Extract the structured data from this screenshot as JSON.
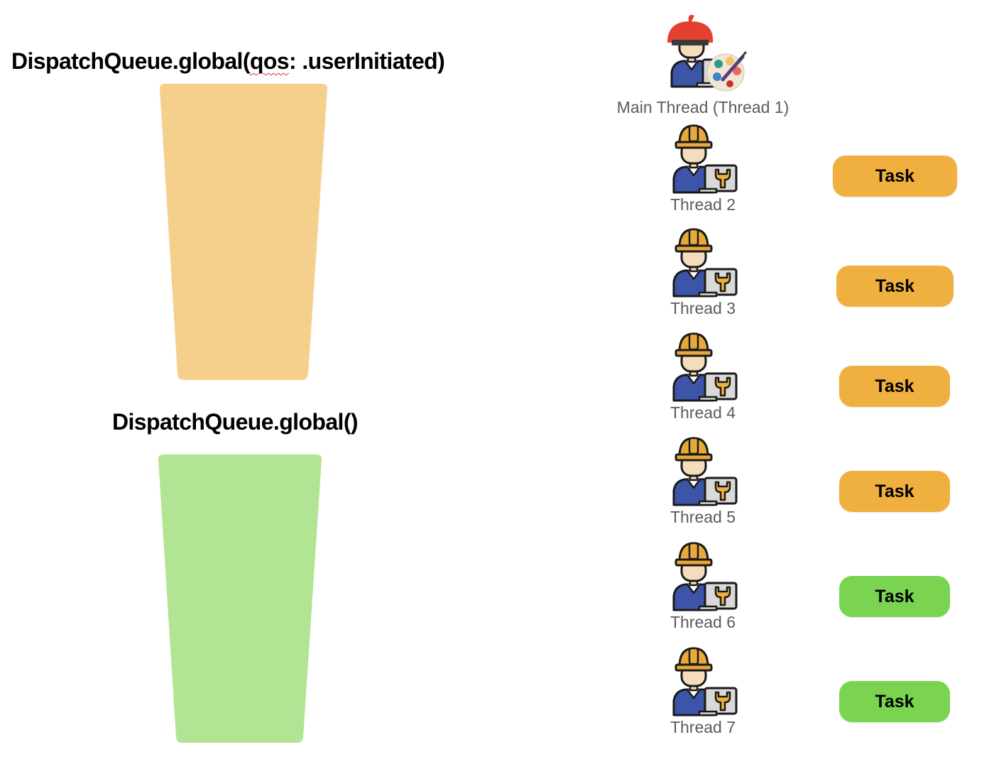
{
  "queues": [
    {
      "title_prefix": "DispatchQueue.global(",
      "title_marked": "qos",
      "title_suffix": ": .userInitiated)",
      "color": "#f5d08d"
    },
    {
      "title": "DispatchQueue.global()",
      "color": "#b1e594"
    }
  ],
  "threads": [
    {
      "label": "Main Thread (Thread 1)",
      "icon": "painter-with-beret-icon"
    },
    {
      "label": "Thread 2",
      "icon": "worker-with-hardhat-icon"
    },
    {
      "label": "Thread 3",
      "icon": "worker-with-hardhat-icon"
    },
    {
      "label": "Thread 4",
      "icon": "worker-with-hardhat-icon"
    },
    {
      "label": "Thread 5",
      "icon": "worker-with-hardhat-icon"
    },
    {
      "label": "Thread 6",
      "icon": "worker-with-hardhat-icon"
    },
    {
      "label": "Thread 7",
      "icon": "worker-with-hardhat-icon"
    }
  ],
  "tasks": [
    {
      "label": "Task",
      "thread": "Thread 2",
      "color": "#f0b03f"
    },
    {
      "label": "Task",
      "thread": "Thread 3",
      "color": "#f0b03f"
    },
    {
      "label": "Task",
      "thread": "Thread 4",
      "color": "#f0b03f"
    },
    {
      "label": "Task",
      "thread": "Thread 5",
      "color": "#f0b03f"
    },
    {
      "label": "Task",
      "thread": "Thread 6",
      "color": "#7ad451"
    },
    {
      "label": "Task",
      "thread": "Thread 7",
      "color": "#7ad451"
    }
  ]
}
